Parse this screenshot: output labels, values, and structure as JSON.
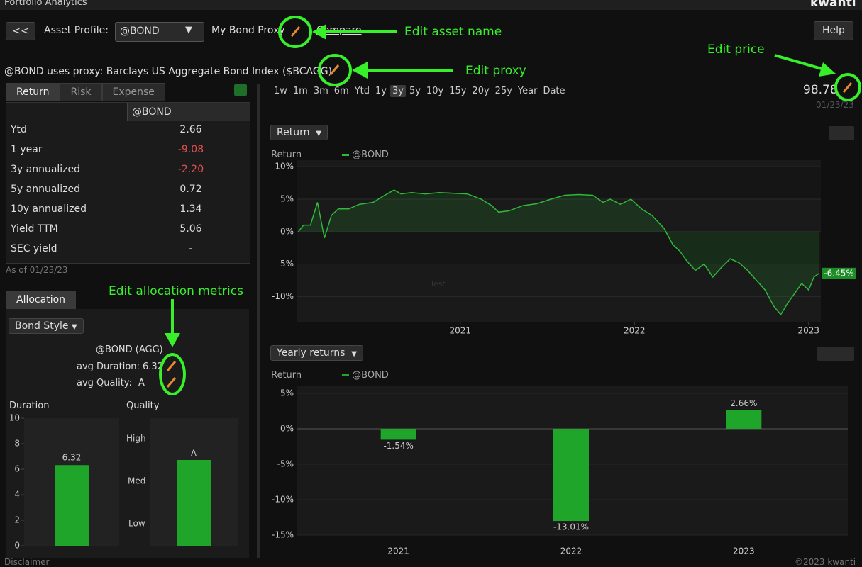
{
  "header": {
    "title": "Portfolio Analytics",
    "brand": "kwanti"
  },
  "toolbar": {
    "back": "<<",
    "asset_profile_label": "Asset Profile:",
    "asset": "@BOND",
    "asset_name": "My Bond Proxy",
    "compare": "Compare",
    "help": "Help"
  },
  "proxy_text": "@BOND uses proxy: Barclays US Aggregate Bond Index ($BCAGG)",
  "annotations": {
    "asset_name": "Edit asset name",
    "proxy": "Edit proxy",
    "price": "Edit price",
    "allocation": "Edit allocation metrics"
  },
  "stats": {
    "tabs": [
      "Return",
      "Risk",
      "Expense"
    ],
    "column": "@BOND",
    "rows": [
      [
        "Ytd",
        "2.66"
      ],
      [
        "1 year",
        "-9.08"
      ],
      [
        "3y annualized",
        "-2.20"
      ],
      [
        "5y annualized",
        "0.72"
      ],
      [
        "10y annualized",
        "1.34"
      ],
      [
        "Yield TTM",
        "5.06"
      ],
      [
        "SEC yield",
        "-"
      ]
    ],
    "as_of": "As of 01/23/23"
  },
  "allocation": {
    "tab": "Allocation",
    "dropdown": "Bond Style",
    "heading": "@BOND (AGG)",
    "duration_label": "avg Duration: 6.32",
    "quality_label": "avg Quality:",
    "quality": "A",
    "quality_title": "Quality",
    "quality_levels": [
      "High",
      "Med",
      "Low"
    ]
  },
  "periods": {
    "options": [
      "1w",
      "1m",
      "3m",
      "6m",
      "Ytd",
      "1y",
      "3y",
      "5y",
      "10y",
      "15y",
      "20y",
      "25y",
      "Year",
      "Date"
    ],
    "selected": "3y"
  },
  "price": {
    "value": "98.78",
    "date": "01/23/23"
  },
  "footer": {
    "left": "Disclaimer",
    "right": "©2023 kwanti"
  },
  "charts": [
    {
      "type": "bar",
      "title": "Duration",
      "values": [
        6.32
      ],
      "color": "#1fa52a",
      "ylim": [
        0,
        10
      ],
      "yticks": [
        0,
        2,
        4,
        6,
        8,
        10
      ]
    },
    {
      "type": "line",
      "dropdown": "Return",
      "ylabel": "Return",
      "annotation": "Test",
      "x": [
        2020.07,
        2020.1,
        2020.14,
        2020.18,
        2020.22,
        2020.26,
        2020.3,
        2020.36,
        2020.42,
        2020.5,
        2020.56,
        2020.62,
        2020.66,
        2020.72,
        2020.8,
        2020.88,
        2020.96,
        2021.04,
        2021.12,
        2021.18,
        2021.22,
        2021.28,
        2021.36,
        2021.44,
        2021.52,
        2021.6,
        2021.68,
        2021.76,
        2021.82,
        2021.86,
        2021.92,
        2021.98,
        2022.04,
        2022.1,
        2022.17,
        2022.22,
        2022.26,
        2022.3,
        2022.35,
        2022.4,
        2022.45,
        2022.5,
        2022.55,
        2022.6,
        2022.65,
        2022.7,
        2022.75,
        2022.8,
        2022.84,
        2022.88,
        2022.92,
        2022.96,
        2023.0,
        2023.03,
        2023.06
      ],
      "series": [
        {
          "name": "@BOND",
          "color": "#2fb83a",
          "values": [
            0,
            1,
            1,
            4.5,
            -1,
            2.5,
            3.5,
            3.5,
            4.2,
            4.5,
            5.5,
            6.4,
            5.8,
            6,
            5.8,
            6,
            5.9,
            5.8,
            5,
            4,
            3,
            3.2,
            4,
            4.3,
            5,
            5.6,
            5.7,
            5.6,
            4.5,
            5,
            4.2,
            5,
            3.5,
            2.5,
            0.5,
            -2,
            -3,
            -4.5,
            -6,
            -5,
            -7,
            -5.5,
            -4.2,
            -4.8,
            -6,
            -7.5,
            -9,
            -11.5,
            -12.8,
            -11,
            -9.5,
            -8,
            -9,
            -7,
            -6.45
          ],
          "last_value_label": "-6.45%"
        }
      ],
      "xlim": [
        2020.06,
        2023.07
      ],
      "xticks": [
        2021,
        2022,
        2023
      ],
      "ylim": [
        -14,
        11
      ],
      "yticks": [
        {
          "value": 10,
          "label": "10%"
        },
        {
          "value": 5,
          "label": "5%"
        },
        {
          "value": 0,
          "label": "0%"
        },
        {
          "value": -5,
          "label": "-5%"
        },
        {
          "value": -10,
          "label": "-10%"
        }
      ]
    },
    {
      "type": "bar",
      "dropdown": "Yearly returns",
      "ylabel": "Return",
      "legend": "@BOND",
      "categories": [
        "2021",
        "2022",
        "2023"
      ],
      "values": [
        -1.54,
        -13.01,
        2.66
      ],
      "value_labels": [
        "-1.54%",
        "-13.01%",
        "2.66%"
      ],
      "color": "#1fa52a",
      "ylim": [
        -15,
        6
      ],
      "yticks": [
        {
          "value": 5,
          "label": "5%"
        },
        {
          "value": 0,
          "label": "0%"
        },
        {
          "value": -5,
          "label": "-5%"
        },
        {
          "value": -10,
          "label": "-10%"
        },
        {
          "value": -15,
          "label": "-15%"
        }
      ]
    }
  ]
}
